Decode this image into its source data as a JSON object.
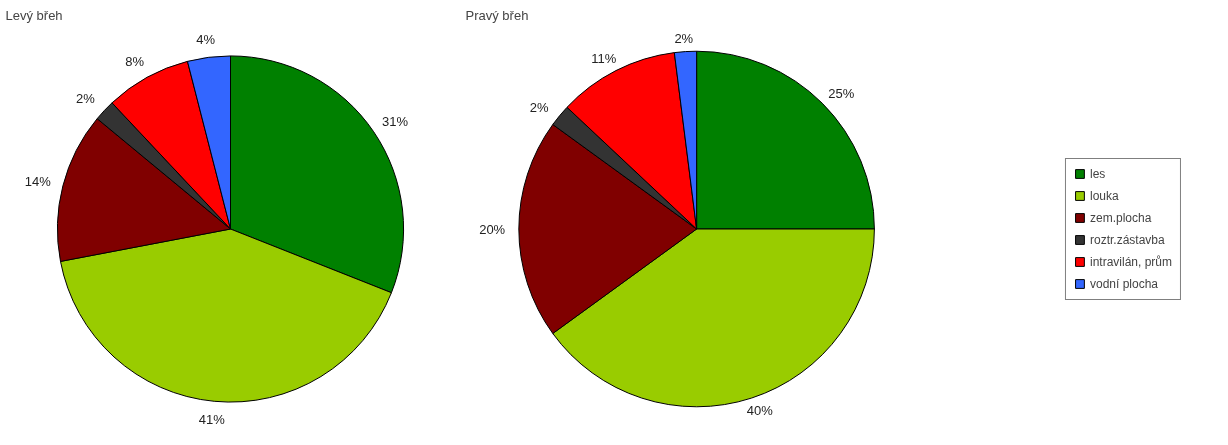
{
  "chart_data": [
    {
      "type": "pie",
      "title": "Levý břeh",
      "values": [
        31,
        41,
        14,
        2,
        8,
        4
      ],
      "value_labels": [
        "31%",
        "41%",
        "14%",
        "2%",
        "8%",
        "4%"
      ],
      "colors": [
        "#008000",
        "#99cc00",
        "#800000",
        "#333333",
        "#ff0000",
        "#3366ff"
      ]
    },
    {
      "type": "pie",
      "title": "Pravý břeh",
      "categories": [
        "les",
        "louka",
        "zem.plocha",
        "roztr.zástavba",
        "intravilán, prům",
        "vodní plocha"
      ],
      "values": [
        25,
        40,
        20,
        2,
        11,
        2
      ],
      "value_labels": [
        "25%",
        "40%",
        "20%",
        "2%",
        "11%",
        "2%"
      ],
      "colors": [
        "#008000",
        "#99cc00",
        "#800000",
        "#333333",
        "#ff0000",
        "#3366ff"
      ],
      "legend": "right"
    }
  ]
}
